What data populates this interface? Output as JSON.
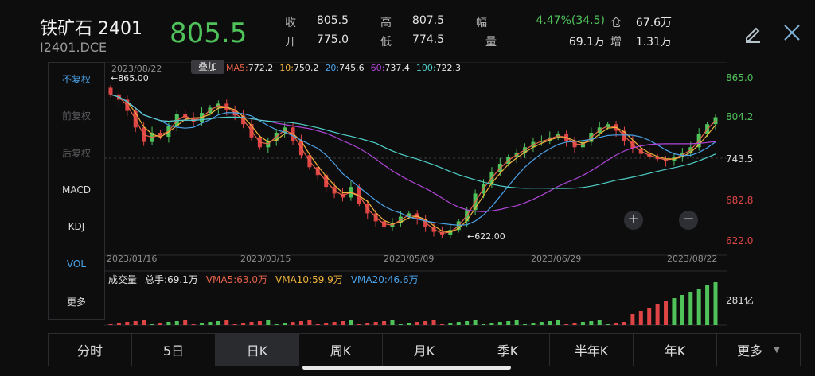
{
  "header": {
    "title": "铁矿石 2401",
    "code": "I2401.DCE",
    "price": "805.5",
    "quote": {
      "close_label": "收",
      "close": "805.5",
      "open_label": "开",
      "open": "775.0",
      "high_label": "高",
      "high": "807.5",
      "low_label": "低",
      "low": "774.5",
      "range_label": "幅",
      "range": "4.47%(34.5)",
      "volume_label": "量",
      "volume": "69.1万",
      "position_label": "仓",
      "position": "67.6万",
      "increase_label": "增",
      "increase": "1.31万"
    },
    "colors": {
      "up": "#4fc35a",
      "down": "#e04545"
    }
  },
  "sidebar": {
    "items": [
      {
        "label": "不复权",
        "state": "active"
      },
      {
        "label": "前复权",
        "state": "disabled"
      },
      {
        "label": "后复权",
        "state": "disabled"
      },
      {
        "label": "MACD",
        "state": "normal"
      },
      {
        "label": "KDJ",
        "state": "normal"
      },
      {
        "label": "VOL",
        "state": "active"
      },
      {
        "label": "更多",
        "state": "normal"
      }
    ]
  },
  "chart": {
    "date_label": "2023/08/22",
    "overlay_button": "叠加",
    "ma_legend": [
      {
        "name": "MA5:",
        "value": "772.2",
        "color": "#e8624a"
      },
      {
        "name": "10:",
        "value": "750.2",
        "color": "#f0b43c"
      },
      {
        "name": "20:",
        "value": "745.6",
        "color": "#4aa2e8"
      },
      {
        "name": "60:",
        "value": "737.4",
        "color": "#b146d9"
      },
      {
        "name": "100:",
        "value": "722.3",
        "color": "#4fd0c8"
      }
    ],
    "high_marker": "865.00",
    "low_marker": "622.00",
    "y_axis": [
      {
        "label": "865.0",
        "color": "#4fc35a"
      },
      {
        "label": "804.2",
        "color": "#4fc35a"
      },
      {
        "label": "743.5",
        "color": "#d8d8d8"
      },
      {
        "label": "682.8",
        "color": "#e04545"
      },
      {
        "label": "622.0",
        "color": "#e04545"
      }
    ],
    "x_axis": [
      "2023/01/16",
      "2023/03/15",
      "2023/05/09",
      "2023/06/29",
      "2023/08/22"
    ],
    "zoom_in": "+",
    "zoom_out": "−"
  },
  "volume": {
    "title": "成交量",
    "total_label": "总手:",
    "total": "69.1万",
    "vma": [
      {
        "name": "VMA5:",
        "value": "63.0万",
        "color": "#e8624a"
      },
      {
        "name": "VMA10:",
        "value": "59.9万",
        "color": "#f0b43c"
      },
      {
        "name": "VMA20:",
        "value": "46.6万",
        "color": "#4aa2e8"
      }
    ],
    "axis_label": "281亿"
  },
  "tabs": [
    {
      "label": "分时",
      "active": false
    },
    {
      "label": "5日",
      "active": false
    },
    {
      "label": "日K",
      "active": true
    },
    {
      "label": "周K",
      "active": false
    },
    {
      "label": "月K",
      "active": false
    },
    {
      "label": "季K",
      "active": false
    },
    {
      "label": "半年K",
      "active": false
    },
    {
      "label": "年K",
      "active": false
    },
    {
      "label": "更多",
      "active": false
    }
  ],
  "chart_data": {
    "type": "candlestick",
    "x_range": [
      "2023/01/16",
      "2023/08/22"
    ],
    "ylim": [
      622.0,
      865.0
    ],
    "high": 865.0,
    "low": 622.0,
    "last": 805.5,
    "close_path": [
      840,
      832,
      815,
      790,
      768,
      782,
      776,
      792,
      810,
      805,
      798,
      812,
      820,
      826,
      816,
      808,
      795,
      775,
      760,
      770,
      782,
      790,
      770,
      748,
      730,
      718,
      700,
      690,
      684,
      700,
      675,
      660,
      648,
      640,
      645,
      655,
      660,
      652,
      640,
      632,
      628,
      635,
      648,
      665,
      690,
      705,
      722,
      735,
      745,
      752,
      760,
      768,
      770,
      775,
      780,
      770,
      760,
      768,
      782,
      790,
      795,
      785,
      770,
      758,
      750,
      746,
      742,
      740,
      745,
      752,
      760,
      780,
      795,
      805.5
    ]
  }
}
